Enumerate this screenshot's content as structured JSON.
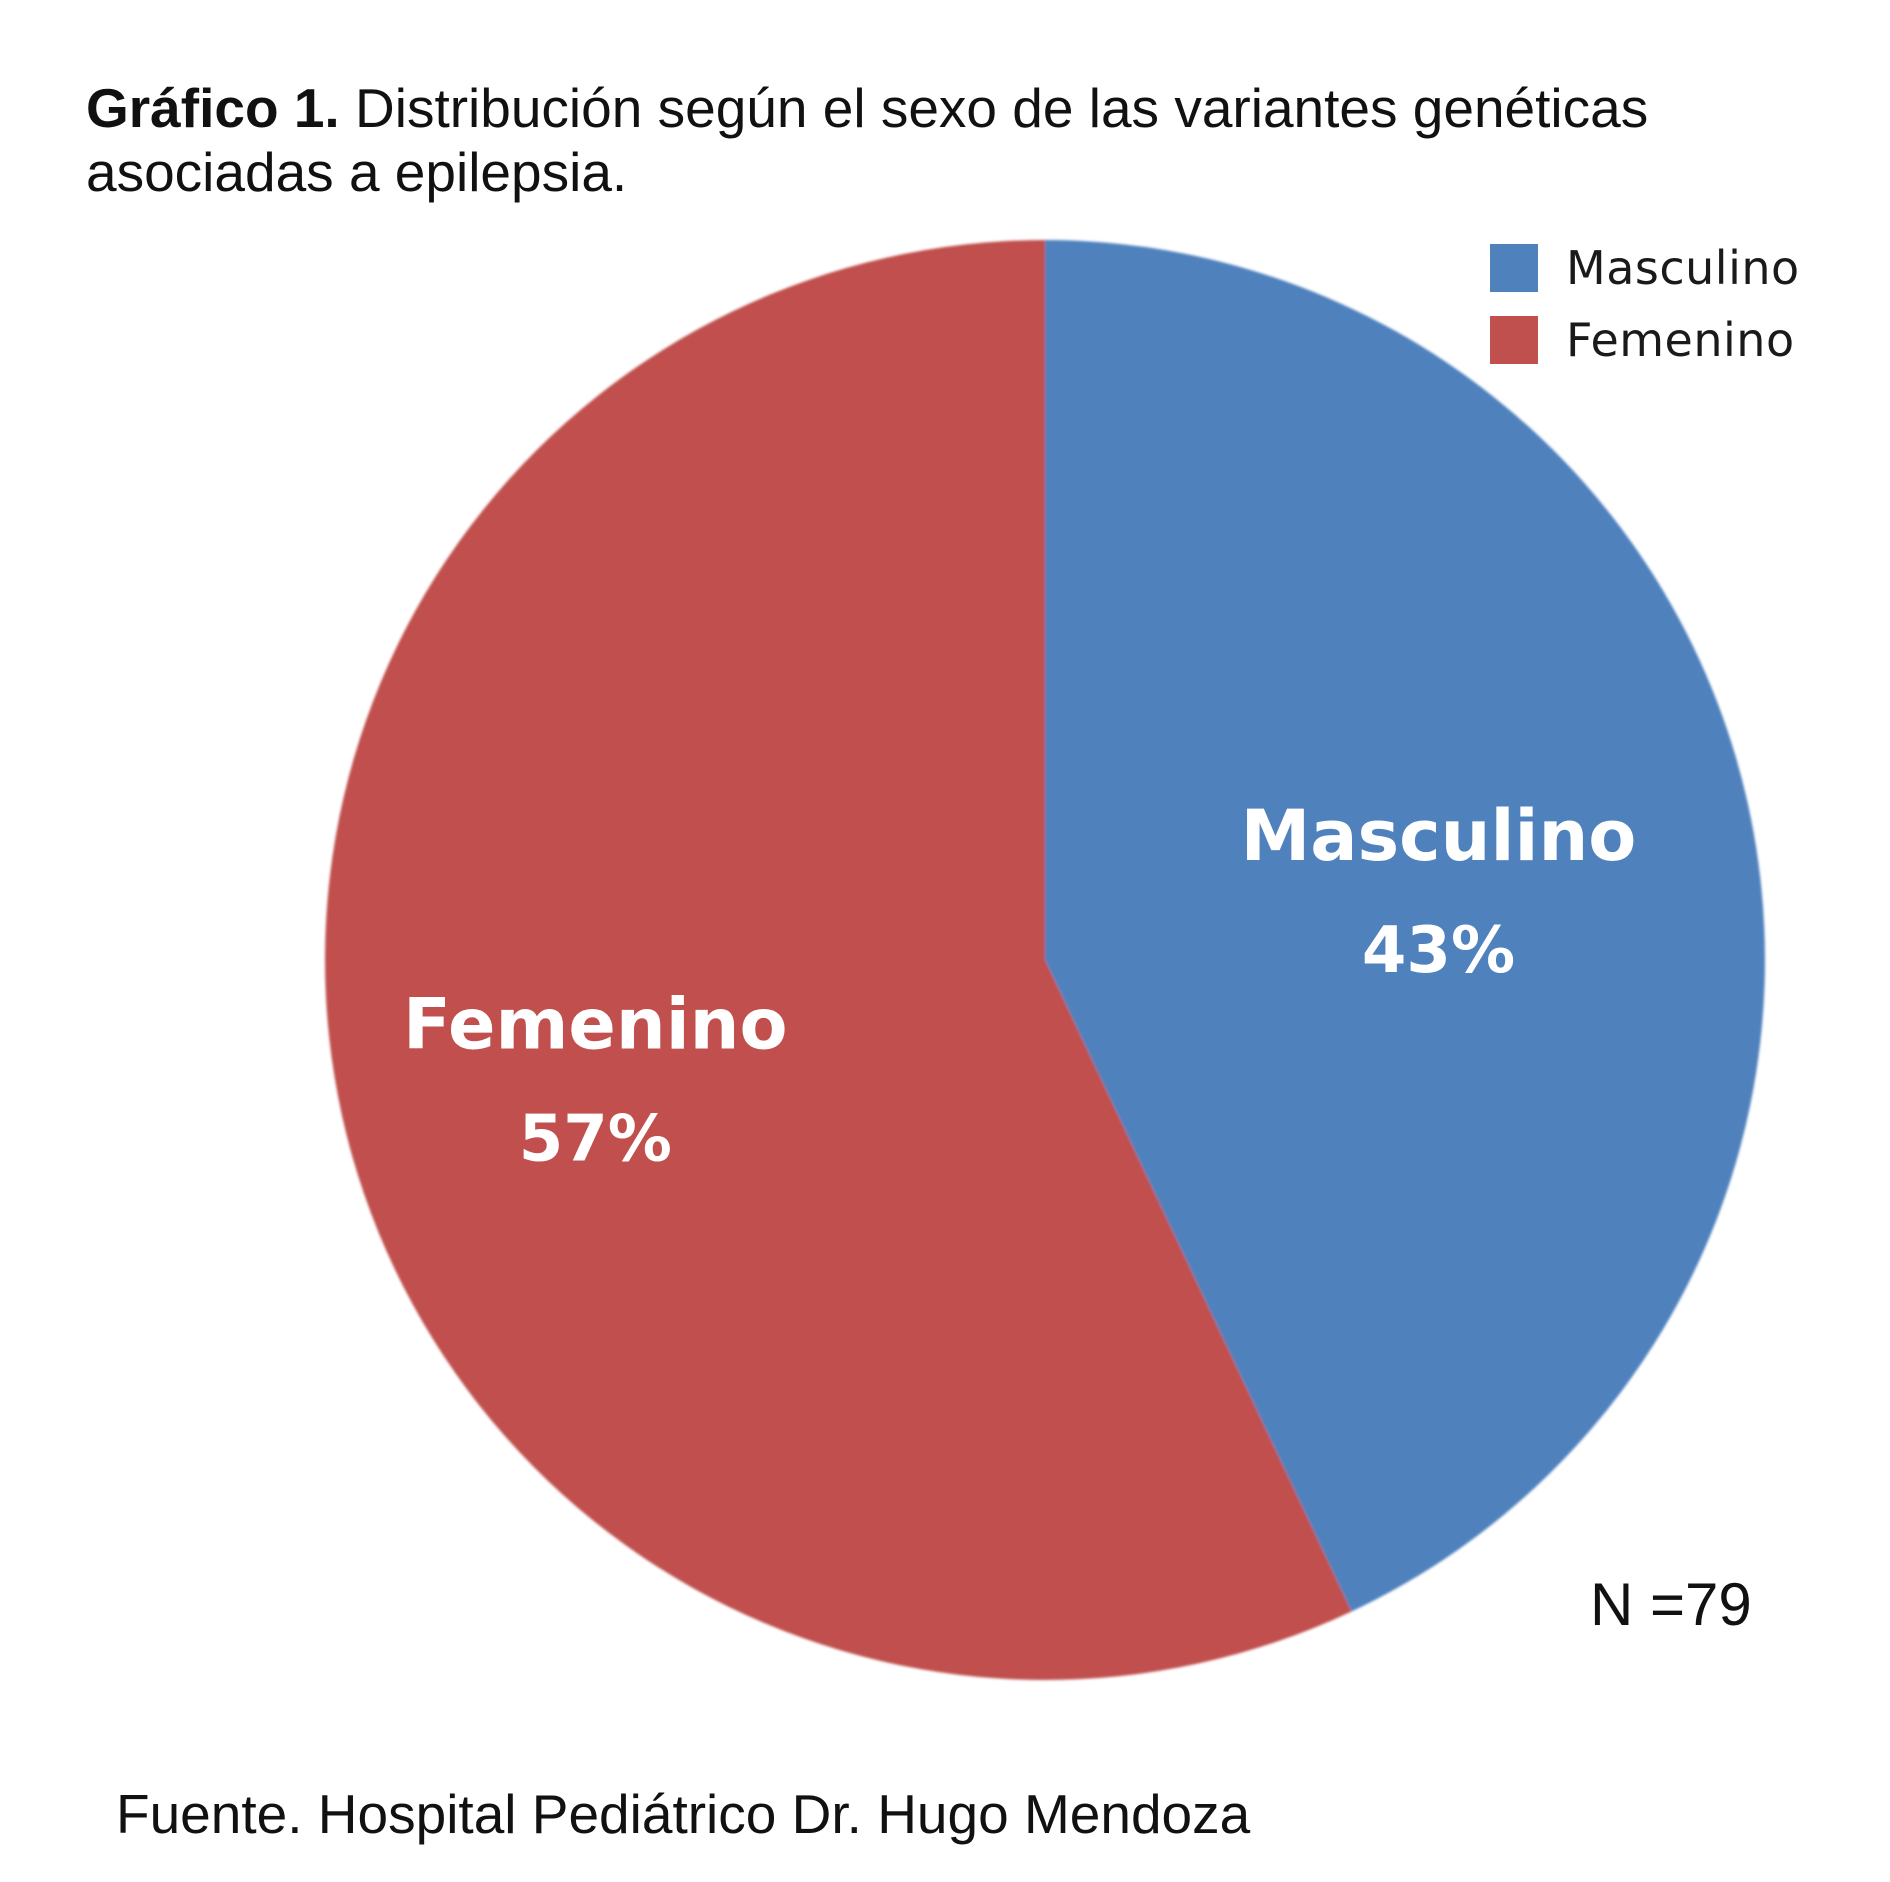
{
  "chart_data": {
    "type": "pie",
    "title_lead": "Gráfico 1.",
    "title_rest": " Distribución según el sexo de las variantes genéticas asociadas a epilepsia.",
    "slices": [
      {
        "name": "Masculino",
        "value": 43,
        "label": "43%",
        "color": "#4f81bd"
      },
      {
        "name": "Femenino",
        "value": 57,
        "label": "57%",
        "color": "#c0504d"
      }
    ],
    "legend": {
      "placement": "top-right",
      "entries": [
        "Masculino",
        "Femenino"
      ]
    },
    "start_angle": "12 o'clock",
    "direction": "clockwise",
    "n_label": "N =79",
    "source": "Fuente. Hospital Pediátrico Dr. Hugo Mendoza"
  }
}
